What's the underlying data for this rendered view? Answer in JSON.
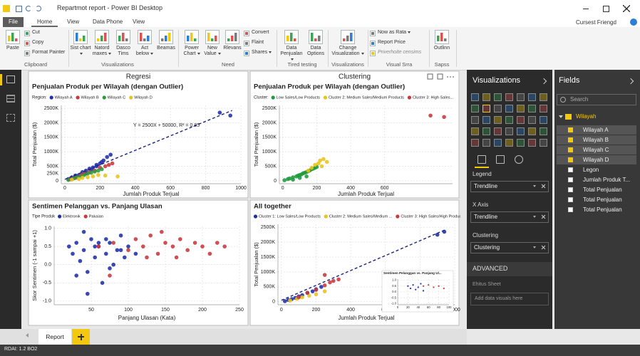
{
  "window": {
    "title": "Repartmot report - Power BI Desktop",
    "user": "Cursest Friengd"
  },
  "menu": [
    "File",
    "Home",
    "View",
    "Data Phone",
    "View"
  ],
  "ribbon": [
    {
      "label": "Clipboard",
      "buttons": [
        "Paste",
        "Cut",
        "Copy",
        "Format Painter"
      ]
    },
    {
      "label": "Visualizations",
      "buttons": [
        "Sist chart",
        "Natord maxes",
        "Dasco Tims",
        "Act below",
        "Beamas"
      ]
    },
    {
      "label": "Need",
      "buttons": [
        "Power Chart",
        "New Value",
        "Rlevans",
        "Convert",
        "Flaint",
        "Shares"
      ]
    },
    {
      "label": "Tired testing",
      "buttons": [
        "Data Penjualan",
        "Data Options"
      ]
    },
    {
      "label": "Visualizations",
      "buttons": [
        "Change Visualization"
      ]
    },
    {
      "label": "Visual Srra",
      "buttons": [
        "Now as Rata",
        "Report Price",
        "Priverhoite censims"
      ]
    },
    {
      "label": "Sapss",
      "buttons": [
        "Outlinn"
      ]
    }
  ],
  "visualizations": {
    "title": "Visualizations",
    "wells": [
      {
        "label": "Legend",
        "value": "Trendline"
      },
      {
        "label": "X Axis",
        "value": "Trendline"
      },
      {
        "label": "Clustering",
        "value": "Clustering"
      }
    ],
    "advanced": "ADVANCED",
    "sheet_label": "Ehitus Sheet",
    "drop_hint": "Add data visuals here"
  },
  "fields": {
    "title": "Fields",
    "search": "Search",
    "table": "Wilayah",
    "items": [
      {
        "name": "Wilayah A",
        "checked": true
      },
      {
        "name": "Wilayah B",
        "checked": true
      },
      {
        "name": "Wilayah C",
        "checked": true
      },
      {
        "name": "Wilayah D",
        "checked": true
      },
      {
        "name": "Legon",
        "checked": false
      },
      {
        "name": "Jumlah Produk T...",
        "checked": false
      },
      {
        "name": "Total Penjualan",
        "checked": false
      },
      {
        "name": "Total Penjualan",
        "checked": false
      },
      {
        "name": "Total Penjualan",
        "checked": false
      }
    ]
  },
  "pages": [
    "Report"
  ],
  "status": "RDAI: 1.2 BO2",
  "chart_data": [
    {
      "type": "scatter",
      "header": "Regresi",
      "title": "Penjualan Produk per Wilayah (dengan Outlier)",
      "legend_title": "Region:",
      "x_label": "Jumlah Produk Terjual",
      "y_label": "Total Penjualan ($)",
      "annotation": "Y = 2500X + 50000, R² = 0.85",
      "grid": true,
      "xlim": [
        -20,
        1000
      ],
      "xticks": [
        0,
        200,
        400,
        600,
        800,
        1000
      ],
      "ylim": [
        -100000,
        2600000
      ],
      "yticks": [
        0,
        {
          "value": 250000,
          "label": "250K"
        },
        {
          "value": 500000,
          "label": "500K"
        },
        {
          "value": 1000000,
          "label": "1000K"
        },
        {
          "value": 1500000,
          "label": "1500K"
        },
        {
          "value": 2000000,
          "label": "2000K"
        },
        {
          "value": 2500000,
          "label": "2500K"
        }
      ],
      "trendline": {
        "color": "#1a237e",
        "x": [
          0,
          950
        ],
        "y": [
          50000,
          2425000
        ]
      },
      "series": [
        {
          "name": "Wilayah A",
          "color": "#1f2fa8",
          "x": [
            20,
            40,
            60,
            80,
            100,
            120,
            140,
            160,
            180,
            200,
            220,
            240,
            260,
            120,
            150,
            180,
            210,
            880,
            940,
            60
          ],
          "values": [
            60000,
            120000,
            180000,
            200000,
            300000,
            350000,
            420000,
            460000,
            550000,
            600000,
            700000,
            820000,
            900000,
            250000,
            380000,
            500000,
            650000,
            2350000,
            2250000,
            150000
          ]
        },
        {
          "name": "Wilayah B",
          "color": "#c8383c",
          "x": [
            30,
            60,
            90,
            110,
            140,
            170,
            200,
            230,
            250,
            270
          ],
          "values": [
            50000,
            100000,
            200000,
            250000,
            300000,
            350000,
            450000,
            500000,
            550000,
            600000
          ]
        },
        {
          "name": "Wilayah C",
          "color": "#2e9a3a",
          "x": [
            20,
            50,
            70,
            90,
            110,
            130,
            150,
            170,
            190,
            210
          ],
          "values": [
            30000,
            80000,
            120000,
            150000,
            200000,
            250000,
            280000,
            320000,
            350000,
            400000
          ]
        },
        {
          "name": "Wilayah D",
          "color": "#e8c31a",
          "x": [
            40,
            80,
            100,
            130,
            160,
            190,
            230,
            300
          ],
          "values": [
            40000,
            60000,
            100000,
            120000,
            150000,
            200000,
            180000,
            150000
          ]
        }
      ]
    },
    {
      "type": "scatter",
      "header": "Clustering",
      "title": "Penjualan Produk per Wilayah (dengan Outlier)",
      "legend_title": "Cluster:",
      "x_label": "Jumlah Produk Terjual",
      "y_label": "Total Penjualan ($)",
      "grid": true,
      "xlim": [
        -20,
        1000
      ],
      "xticks": [
        0,
        200,
        400,
        600
      ],
      "ylim": [
        -100000,
        2600000
      ],
      "yticks": [
        0,
        {
          "value": 500000,
          "label": "500K"
        },
        {
          "value": 1000000,
          "label": "1000K"
        },
        {
          "value": 1500000,
          "label": "1500K"
        },
        {
          "value": 2000000,
          "label": "2000K"
        },
        {
          "value": 2500000,
          "label": "2500K"
        }
      ],
      "series": [
        {
          "name": "Low Sales/Low Products",
          "color": "#1f9a3c",
          "x": [
            10,
            30,
            40,
            60,
            80,
            90,
            100,
            110,
            120,
            130,
            140,
            150,
            160,
            170,
            180,
            190,
            200,
            100,
            140,
            60
          ],
          "values": [
            20000,
            60000,
            80000,
            120000,
            150000,
            180000,
            200000,
            220000,
            260000,
            280000,
            300000,
            330000,
            360000,
            400000,
            420000,
            450000,
            480000,
            100000,
            150000,
            40000
          ]
        },
        {
          "name": "Cluster 2: Medium Sales/Medium Products",
          "color": "#e8c31a",
          "x": [
            150,
            170,
            190,
            210,
            220,
            240,
            260,
            230
          ],
          "values": [
            350000,
            450000,
            550000,
            600000,
            700000,
            750000,
            650000,
            500000
          ]
        },
        {
          "name": "Cluster 3: High Sales...",
          "color": "#c8383c",
          "x": [
            870,
            950
          ],
          "values": [
            2250000,
            2200000
          ]
        }
      ]
    },
    {
      "type": "scatter",
      "title": "Sentimen Pelanggan vs. Panjang Ulasan",
      "legend_title": "Tipe Produk",
      "x_label": "Panjang Ulasan (Kata)",
      "y_label": "Skor Sentimen (-1 sampai +1)",
      "grid": true,
      "xlim": [
        0,
        250
      ],
      "xticks": [
        50,
        100,
        150,
        200,
        250
      ],
      "ylim": [
        -1.1,
        1.05
      ],
      "yticks": [
        {
          "value": -1,
          "label": "-1.0"
        },
        -0.5,
        {
          "value": 0,
          "label": "0.0"
        },
        0.5,
        {
          "value": 1,
          "label": "1.0"
        }
      ],
      "series": [
        {
          "name": "Elektronik",
          "color": "#1f2fa8",
          "x": [
            20,
            25,
            30,
            35,
            40,
            45,
            50,
            55,
            60,
            65,
            70,
            75,
            80,
            85,
            90,
            95,
            100,
            30,
            45,
            60,
            75,
            90,
            40,
            55,
            70,
            110
          ],
          "values": [
            0.5,
            0.3,
            0.6,
            0.1,
            0.4,
            -0.2,
            0.7,
            0.2,
            0.5,
            -0.5,
            0.3,
            0.6,
            0.0,
            0.4,
            0.8,
            0.2,
            0.5,
            -0.3,
            -0.8,
            0.6,
            -0.1,
            0.4,
            0.9,
            0.5,
            0.7,
            0.3
          ]
        },
        {
          "name": "Pakaian",
          "color": "#c8383c",
          "x": [
            60,
            80,
            100,
            110,
            120,
            130,
            140,
            150,
            160,
            170,
            180,
            190,
            200,
            210,
            220,
            230,
            125,
            145,
            165,
            75
          ],
          "values": [
            0.5,
            0.6,
            0.4,
            0.7,
            0.5,
            0.8,
            0.3,
            0.6,
            0.5,
            0.7,
            0.4,
            0.6,
            0.5,
            0.3,
            0.6,
            0.5,
            0.2,
            0.9,
            0.2,
            -0.3
          ]
        }
      ]
    },
    {
      "type": "scatter",
      "title": "All together",
      "x_label": "Jumlah Produk Terjual",
      "y_label": "Total Penjualan ($)",
      "grid": true,
      "xlim": [
        -20,
        1000
      ],
      "xticks": [
        0,
        200,
        400,
        600,
        800,
        1000
      ],
      "ylim": [
        -100000,
        2600000
      ],
      "yticks": [
        0,
        {
          "value": 500000,
          "label": "500K"
        },
        {
          "value": 1000000,
          "label": "1000K"
        },
        {
          "value": 1500000,
          "label": "1500K"
        },
        {
          "value": 2000000,
          "label": "2000K"
        },
        {
          "value": 2500000,
          "label": "2500K"
        }
      ],
      "trendline": {
        "color": "#1a237e",
        "x": [
          0,
          950
        ],
        "y": [
          50000,
          2425000
        ]
      },
      "series": [
        {
          "name": "Cluster 1: Low Sales/Low Products",
          "color": "#1f2fa8",
          "x": [
            20,
            40,
            60,
            80,
            100,
            120,
            150,
            180,
            200,
            230,
            900,
            940
          ],
          "values": [
            20000,
            60000,
            90000,
            130000,
            180000,
            220000,
            300000,
            350000,
            420000,
            500000,
            2250000,
            2350000
          ]
        },
        {
          "name": "Cluster 2: Medium Sales/Medium ...",
          "color": "#e8c31a",
          "x": [
            50,
            90,
            120,
            160,
            200,
            250
          ],
          "values": [
            40000,
            100000,
            150000,
            200000,
            250000,
            350000
          ]
        },
        {
          "name": "Cluster 3: High Sales/High Products",
          "color": "#c8383c",
          "x": [
            100,
            150,
            200,
            250,
            280,
            300,
            330,
            250
          ],
          "values": [
            150000,
            300000,
            400000,
            550000,
            650000,
            700000,
            750000,
            900000
          ]
        }
      ]
    },
    {
      "type": "scatter",
      "title": "Sentimen Pelanggan vs. Panjang Ul...",
      "grid": true,
      "xlim": [
        0,
        100
      ],
      "xticks": [
        0,
        20,
        40,
        60,
        80,
        100
      ],
      "ylim": [
        -1.1,
        1.1
      ],
      "yticks": [
        {
          "value": -1,
          "label": "-1.0"
        },
        -0.5,
        {
          "value": 0,
          "label": "0.0"
        },
        0.5,
        {
          "value": 1,
          "label": "1.0"
        }
      ],
      "series": [
        {
          "color": "#1f2fa8",
          "x": [
            20,
            25,
            30,
            35,
            40,
            45,
            50
          ],
          "values": [
            0.5,
            0.3,
            0.6,
            0.2,
            0.4,
            0.7,
            0.1
          ]
        },
        {
          "color": "#c8383c",
          "x": [
            50,
            60,
            70,
            80,
            90
          ],
          "values": [
            0.5,
            0.6,
            0.4,
            0.5,
            0.3
          ]
        }
      ]
    }
  ]
}
